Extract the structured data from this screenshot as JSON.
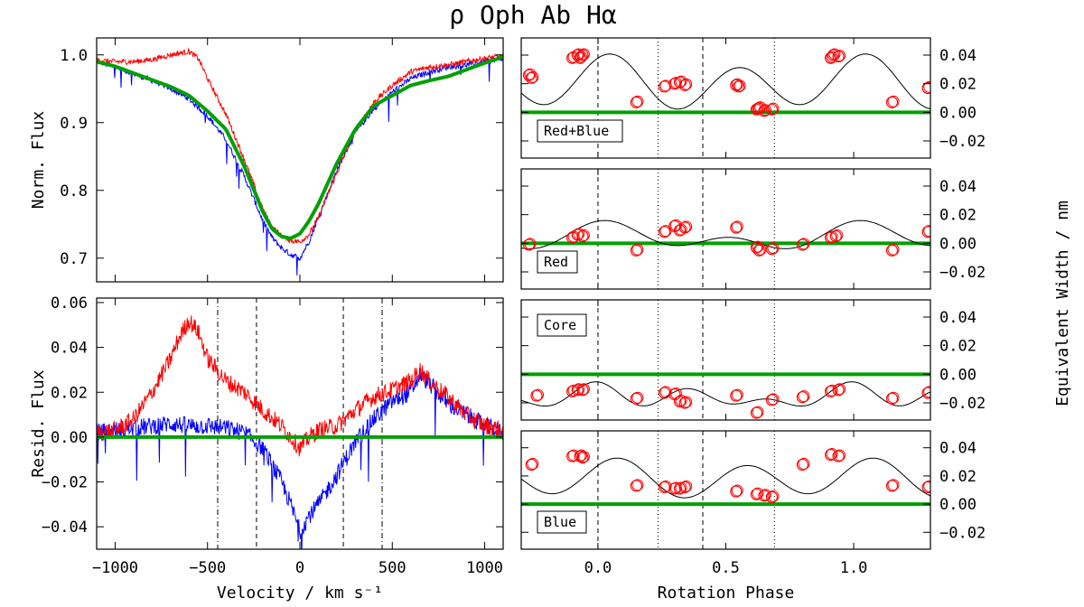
{
  "figure": {
    "title": "ρ Oph Ab Hα",
    "right_ylabel": "Equivalent Width / nm"
  },
  "colors": {
    "red": "#ff0000",
    "blue": "#0000ff",
    "green": "#00a000",
    "black": "#000000"
  },
  "chart_data": [
    {
      "id": "flux",
      "type": "line",
      "xlabel": "",
      "ylabel": "Norm. Flux",
      "xlim": [
        -1100,
        1100
      ],
      "ylim": [
        0.665,
        1.025
      ],
      "xticks": [
        -1000,
        -500,
        0,
        500,
        1000
      ],
      "yticks": [
        0.7,
        0.8,
        0.9,
        1.0
      ],
      "ytick_labels": [
        "0.7",
        "0.8",
        "0.9",
        "1.0"
      ],
      "series": [
        {
          "name": "model",
          "color": "green",
          "x": [
            -1100,
            -1000,
            -900,
            -800,
            -700,
            -600,
            -500,
            -400,
            -300,
            -200,
            -150,
            -100,
            -50,
            0,
            50,
            100,
            200,
            300,
            400,
            500,
            600,
            700,
            800,
            900,
            1000,
            1100
          ],
          "y": [
            0.99,
            0.983,
            0.973,
            0.963,
            0.953,
            0.94,
            0.917,
            0.89,
            0.835,
            0.768,
            0.743,
            0.732,
            0.729,
            0.736,
            0.755,
            0.78,
            0.84,
            0.89,
            0.925,
            0.94,
            0.955,
            0.962,
            0.968,
            0.978,
            0.988,
            0.997
          ]
        },
        {
          "name": "red",
          "color": "red",
          "x": [
            -1100,
            -1000,
            -900,
            -800,
            -700,
            -600,
            -550,
            -500,
            -400,
            -300,
            -200,
            -150,
            -100,
            -50,
            0,
            50,
            100,
            200,
            300,
            400,
            500,
            600,
            700,
            800,
            900,
            1000,
            1100
          ],
          "y": [
            0.992,
            0.99,
            0.99,
            0.993,
            1.0,
            1.005,
            0.995,
            0.965,
            0.912,
            0.845,
            0.772,
            0.746,
            0.733,
            0.726,
            0.724,
            0.735,
            0.76,
            0.826,
            0.889,
            0.93,
            0.955,
            0.975,
            0.982,
            0.985,
            0.99,
            0.995,
            0.998
          ]
        },
        {
          "name": "blue",
          "color": "blue",
          "x": [
            -1100,
            -1000,
            -900,
            -800,
            -700,
            -600,
            -500,
            -400,
            -300,
            -200,
            -150,
            -100,
            -50,
            0,
            50,
            100,
            200,
            300,
            400,
            500,
            600,
            700,
            800,
            900,
            1000,
            1100
          ],
          "y": [
            0.99,
            0.982,
            0.972,
            0.962,
            0.95,
            0.935,
            0.91,
            0.875,
            0.82,
            0.755,
            0.73,
            0.715,
            0.705,
            0.7,
            0.725,
            0.76,
            0.83,
            0.885,
            0.92,
            0.945,
            0.965,
            0.975,
            0.982,
            0.985,
            0.99,
            0.995
          ]
        }
      ]
    },
    {
      "id": "resid",
      "type": "line",
      "xlabel": "Velocity / km s⁻¹",
      "ylabel": "Resid. Flux",
      "xlim": [
        -1100,
        1100
      ],
      "ylim": [
        -0.05,
        0.062
      ],
      "xticks": [
        -1000,
        -500,
        0,
        500,
        1000
      ],
      "xtick_labels": [
        "−1000",
        "−500",
        "0",
        "500",
        "1000"
      ],
      "yticks": [
        -0.04,
        -0.02,
        0.0,
        0.02,
        0.04,
        0.06
      ],
      "ytick_labels": [
        "−0.04",
        "−0.02",
        "0.00",
        "0.02",
        "0.04",
        "0.06"
      ],
      "vlines_dashed": [
        -235,
        235
      ],
      "vlines_dashdot": [
        -445,
        445
      ],
      "series": [
        {
          "name": "zero",
          "color": "green",
          "x": [
            -1100,
            1100
          ],
          "y": [
            0,
            0
          ]
        },
        {
          "name": "red",
          "color": "red",
          "x": [
            -1100,
            -1000,
            -900,
            -800,
            -700,
            -650,
            -600,
            -550,
            -500,
            -400,
            -300,
            -200,
            -100,
            -50,
            0,
            50,
            100,
            200,
            300,
            400,
            500,
            600,
            650,
            700,
            800,
            900,
            1000,
            1100
          ],
          "y": [
            0.002,
            0.003,
            0.008,
            0.02,
            0.035,
            0.045,
            0.052,
            0.047,
            0.035,
            0.025,
            0.02,
            0.012,
            0.005,
            0.0,
            -0.005,
            0.0,
            0.003,
            0.005,
            0.012,
            0.018,
            0.021,
            0.025,
            0.03,
            0.025,
            0.018,
            0.01,
            0.005,
            0.003
          ]
        },
        {
          "name": "blue",
          "color": "blue",
          "x": [
            -1100,
            -1000,
            -900,
            -800,
            -700,
            -600,
            -500,
            -400,
            -300,
            -200,
            -100,
            -50,
            0,
            50,
            100,
            200,
            300,
            400,
            500,
            600,
            650,
            700,
            800,
            900,
            1000,
            1100
          ],
          "y": [
            0.002,
            0.003,
            0.004,
            0.005,
            0.006,
            0.005,
            0.005,
            0.004,
            0.002,
            -0.005,
            -0.02,
            -0.03,
            -0.042,
            -0.035,
            -0.03,
            -0.017,
            -0.002,
            0.008,
            0.016,
            0.02,
            0.028,
            0.024,
            0.015,
            0.01,
            0.005,
            0.002
          ]
        }
      ]
    },
    {
      "id": "ew-redblue",
      "type": "scatter",
      "legend": "Red+Blue",
      "xlim": [
        -0.3,
        1.3
      ],
      "ylim": [
        -0.032,
        0.052
      ],
      "yticks": [
        -0.02,
        0.0,
        0.02,
        0.04
      ],
      "ytick_labels": [
        "−0.02",
        "0.00",
        "0.02",
        "0.04"
      ],
      "model": {
        "mean": 0.02,
        "a1": 0.005,
        "p1": 0.0,
        "a2": 0.016,
        "p2": 0.55
      },
      "points_x": [
        -0.27,
        -0.26,
        -0.1,
        -0.08,
        -0.07,
        -0.06,
        0.15,
        0.26,
        0.3,
        0.32,
        0.34,
        0.54,
        0.55,
        0.62,
        0.63,
        0.65,
        0.68,
        0.91,
        0.92,
        0.94,
        1.15,
        1.29
      ],
      "points_y": [
        0.026,
        0.024,
        0.038,
        0.04,
        0.038,
        0.04,
        0.007,
        0.018,
        0.02,
        0.021,
        0.019,
        0.019,
        0.018,
        0.002,
        0.003,
        0.001,
        0.002,
        0.038,
        0.04,
        0.039,
        0.007,
        0.017
      ]
    },
    {
      "id": "ew-red",
      "type": "scatter",
      "legend": "Red",
      "xlim": [
        -0.3,
        1.3
      ],
      "ylim": [
        -0.032,
        0.052
      ],
      "yticks": [
        -0.02,
        0.0,
        0.02,
        0.04
      ],
      "ytick_labels": [
        "−0.02",
        "0.00",
        "0.02",
        "0.04"
      ],
      "model": {
        "mean": 0.004,
        "a1": 0.006,
        "p1": 0.05,
        "a2": 0.006,
        "p2": 0.52
      },
      "points_x": [
        -0.27,
        -0.1,
        -0.08,
        -0.06,
        0.15,
        0.26,
        0.3,
        0.32,
        0.34,
        0.54,
        0.62,
        0.63,
        0.68,
        0.8,
        0.91,
        0.93,
        1.15,
        1.29
      ],
      "points_y": [
        -0.001,
        0.004,
        0.006,
        0.005,
        -0.005,
        0.008,
        0.012,
        0.009,
        0.011,
        0.011,
        -0.003,
        -0.005,
        -0.004,
        -0.001,
        0.004,
        0.005,
        -0.005,
        0.008
      ]
    },
    {
      "id": "ew-core",
      "type": "scatter",
      "legend": "Core",
      "xlim": [
        -0.3,
        1.3
      ],
      "ylim": [
        -0.032,
        0.052
      ],
      "yticks": [
        -0.02,
        0.0,
        0.02,
        0.04
      ],
      "ytick_labels": [
        "−0.02",
        "0.00",
        "0.02",
        "0.04"
      ],
      "model": {
        "mean": -0.016,
        "a1": 0.003,
        "p1": 0.1,
        "a2": 0.004,
        "p2": 0.45,
        "a3": 0.005,
        "p3": 0.0
      },
      "points_x": [
        -0.24,
        -0.1,
        -0.08,
        -0.06,
        0.15,
        0.26,
        0.3,
        0.32,
        0.34,
        0.54,
        0.62,
        0.68,
        0.8,
        0.91,
        0.94,
        1.15,
        1.29
      ],
      "points_y": [
        -0.015,
        -0.012,
        -0.011,
        -0.011,
        -0.017,
        -0.013,
        -0.014,
        -0.019,
        -0.02,
        -0.015,
        -0.027,
        -0.018,
        -0.016,
        -0.012,
        -0.011,
        -0.017,
        -0.013
      ]
    },
    {
      "id": "ew-blue",
      "type": "scatter",
      "legend": "Blue",
      "xlabel": "Rotation Phase",
      "xlim": [
        -0.3,
        1.3
      ],
      "xticks": [
        0.0,
        0.5,
        1.0
      ],
      "xtick_labels": [
        "0.0",
        "0.5",
        "1.0"
      ],
      "ylim": [
        -0.032,
        0.052
      ],
      "yticks": [
        -0.02,
        0.0,
        0.02,
        0.04
      ],
      "ytick_labels": [
        "−0.02",
        "0.00",
        "0.02",
        "0.04"
      ],
      "model": {
        "mean": 0.018,
        "a1": 0.003,
        "p1": 0.0,
        "a2": 0.012,
        "p2": 0.58
      },
      "points_x": [
        -0.26,
        -0.1,
        -0.07,
        -0.06,
        0.15,
        0.26,
        0.3,
        0.32,
        0.34,
        0.54,
        0.62,
        0.65,
        0.68,
        0.8,
        0.91,
        0.94,
        1.15,
        1.29
      ],
      "points_y": [
        0.028,
        0.034,
        0.034,
        0.033,
        0.013,
        0.012,
        0.011,
        0.011,
        0.012,
        0.009,
        0.007,
        0.006,
        0.005,
        0.028,
        0.035,
        0.034,
        0.013,
        0.012
      ]
    }
  ],
  "phase_lines": {
    "dashed": [
      0.0,
      0.41
    ],
    "dotted": [
      0.235,
      0.69
    ]
  }
}
